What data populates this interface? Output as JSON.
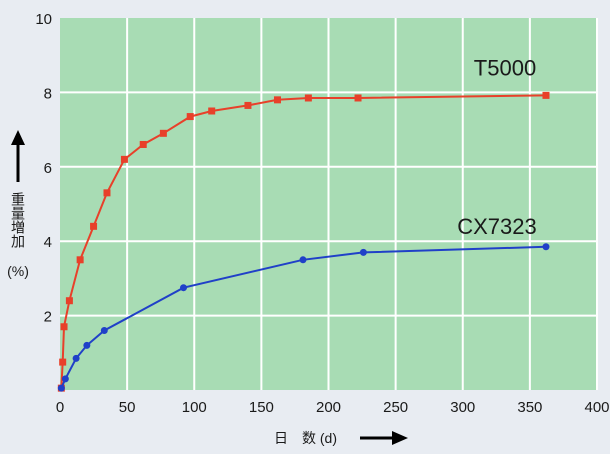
{
  "chart_data": {
    "type": "line",
    "title": "",
    "xlabel": "日　数 (d)",
    "ylabel": "重量増加",
    "ylabel_unit": "(%)",
    "xlim": [
      0,
      400
    ],
    "ylim": [
      0,
      10
    ],
    "x_ticks": [
      0,
      50,
      100,
      150,
      200,
      250,
      300,
      350,
      400
    ],
    "y_ticks": [
      2,
      4,
      6,
      8,
      10
    ],
    "grid": true,
    "background_color": "#a8dcb4",
    "series": [
      {
        "name": "T5000",
        "color": "#e8402a",
        "points": [
          [
            1,
            0.05
          ],
          [
            2,
            0.75
          ],
          [
            3,
            1.7
          ],
          [
            7,
            2.4
          ],
          [
            15,
            3.5
          ],
          [
            25,
            4.4
          ],
          [
            35,
            5.3
          ],
          [
            48,
            6.2
          ],
          [
            62,
            6.6
          ],
          [
            77,
            6.9
          ],
          [
            97,
            7.35
          ],
          [
            113,
            7.5
          ],
          [
            140,
            7.65
          ],
          [
            162,
            7.8
          ],
          [
            185,
            7.85
          ],
          [
            222,
            7.85
          ],
          [
            362,
            7.92
          ]
        ]
      },
      {
        "name": "CX7323",
        "color": "#2040c8",
        "points": [
          [
            1,
            0.05
          ],
          [
            4,
            0.3
          ],
          [
            12,
            0.85
          ],
          [
            20,
            1.2
          ],
          [
            33,
            1.6
          ],
          [
            92,
            2.75
          ],
          [
            181,
            3.5
          ],
          [
            226,
            3.7
          ],
          [
            362,
            3.85
          ]
        ]
      }
    ]
  }
}
